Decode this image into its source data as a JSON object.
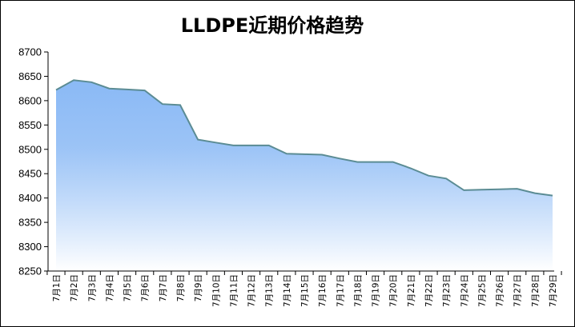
{
  "chart_data": {
    "type": "area",
    "title": "LLDPE近期价格趋势",
    "xlabel": "",
    "ylabel": "",
    "ylim": [
      8250,
      8700
    ],
    "ystep": 50,
    "grid": false,
    "legend": "none",
    "colors": {
      "line": "#5b8c94",
      "fill_top": "#8ab9f5",
      "fill_bottom": "#ffffff",
      "axis": "#000000"
    },
    "categories": [
      "7月1日",
      "7月2日",
      "7月3日",
      "7月4日",
      "7月5日",
      "7月6日",
      "7月7日",
      "7月8日",
      "7月9日",
      "7月10日",
      "7月11日",
      "7月12日",
      "7月13日",
      "7月14日",
      "7月15日",
      "7月16日",
      "7月17日",
      "7月18日",
      "7月19日",
      "7月20日",
      "7月21日",
      "7月22日",
      "7月23日",
      "7月24日",
      "7月25日",
      "7月26日",
      "7月27日",
      "7月28日",
      "7月29日"
    ],
    "series": [
      {
        "values": [
          8622,
          8642,
          8638,
          8625,
          8623,
          8621,
          8593,
          8591,
          8520,
          8514,
          8508,
          8508,
          8508,
          8491,
          8490,
          8489,
          8481,
          8474,
          8474,
          8474,
          8461,
          8446,
          8440,
          8416,
          8417,
          8418,
          8419,
          8410,
          8405
        ]
      }
    ]
  }
}
